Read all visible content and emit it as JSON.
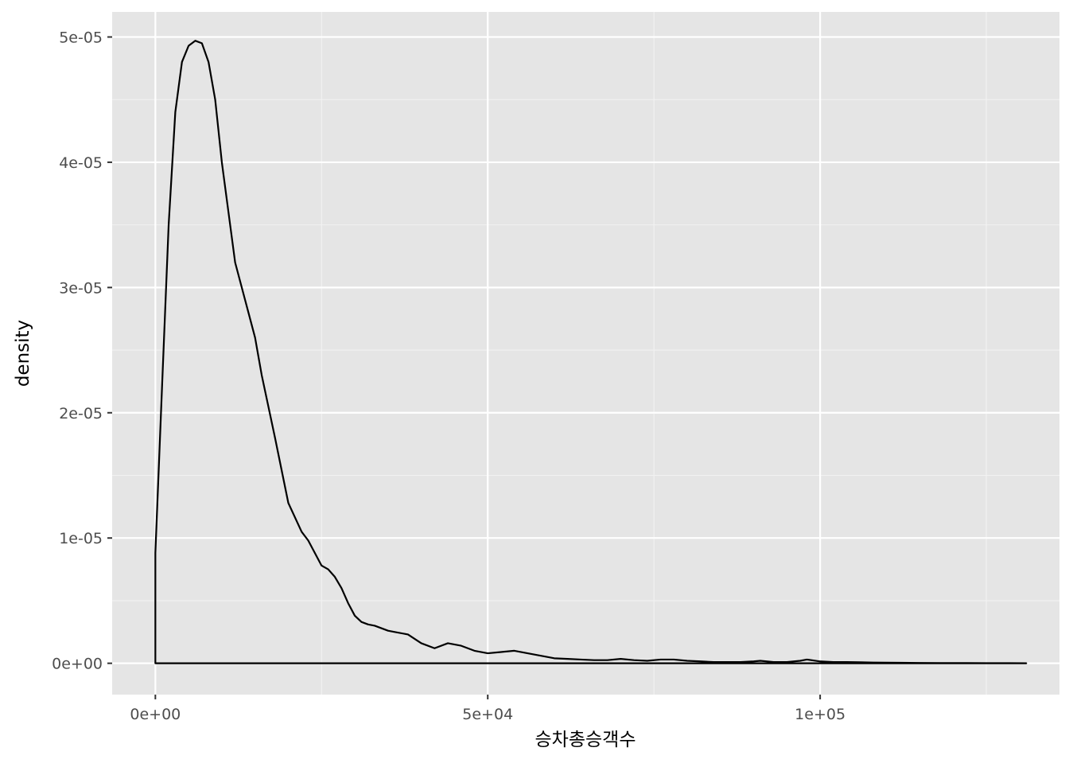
{
  "chart_data": {
    "type": "area",
    "title": "",
    "xlabel": "승차총승객수",
    "ylabel": "density",
    "xlim": [
      -6500,
      136000
    ],
    "ylim": [
      -2500000,
      52000000
    ],
    "y_scale_note": "y values stored in units of 1e-12 density",
    "grid": true,
    "legend": "none",
    "x_ticks": [
      {
        "value": 0,
        "label": "0e+00"
      },
      {
        "value": 50000,
        "label": "5e+04"
      },
      {
        "value": 100000,
        "label": "1e+05"
      }
    ],
    "x_minor_ticks": [
      25000,
      75000,
      125000
    ],
    "y_ticks": [
      {
        "value": 0,
        "label": "0e+00"
      },
      {
        "value": 10000000,
        "label": "1e-05"
      },
      {
        "value": 20000000,
        "label": "2e-05"
      },
      {
        "value": 30000000,
        "label": "3e-05"
      },
      {
        "value": 40000000,
        "label": "4e-05"
      },
      {
        "value": 50000000,
        "label": "5e-05"
      }
    ],
    "y_minor_ticks": [
      5000000,
      15000000,
      25000000,
      35000000,
      45000000
    ],
    "series": [
      {
        "x": [
          0,
          1000,
          2000,
          3000,
          4000,
          5000,
          6000,
          7000,
          8000,
          9000,
          10000,
          11000,
          12000,
          14000,
          15000,
          16000,
          18000,
          20000,
          22000,
          23000,
          25000,
          26000,
          27000,
          28000,
          29000,
          30000,
          31000,
          32000,
          33000,
          34000,
          35000,
          36000,
          38000,
          40000,
          42000,
          44000,
          46000,
          48000,
          50000,
          52000,
          54000,
          56000,
          58000,
          60000,
          62000,
          64000,
          66000,
          68000,
          70000,
          72000,
          74000,
          76000,
          78000,
          80000,
          82000,
          84000,
          86000,
          88000,
          90000,
          91000,
          93000,
          95000,
          97000,
          98000,
          100000,
          102000,
          104000,
          106000,
          108000,
          110000,
          112000,
          115000,
          118000,
          120000,
          122000,
          125000,
          128000,
          131000
        ],
        "y": [
          8800000,
          22000000,
          35000000,
          44000000,
          48000000,
          49300000,
          49700000,
          49500000,
          48000000,
          45000000,
          40000000,
          36000000,
          32000000,
          28000000,
          26000000,
          23000000,
          18000000,
          12800000,
          10500000,
          9800000,
          7800000,
          7500000,
          6900000,
          6000000,
          4800000,
          3800000,
          3300000,
          3100000,
          3000000,
          2800000,
          2600000,
          2500000,
          2300000,
          1600000,
          1200000,
          1600000,
          1400000,
          1000000,
          800000,
          900000,
          1000000,
          800000,
          600000,
          400000,
          350000,
          300000,
          250000,
          250000,
          350000,
          250000,
          200000,
          300000,
          300000,
          200000,
          150000,
          100000,
          100000,
          100000,
          150000,
          200000,
          100000,
          100000,
          200000,
          300000,
          150000,
          100000,
          100000,
          80000,
          60000,
          50000,
          40000,
          30000,
          20000,
          20000,
          20000,
          10000,
          10000,
          0
        ]
      }
    ]
  }
}
